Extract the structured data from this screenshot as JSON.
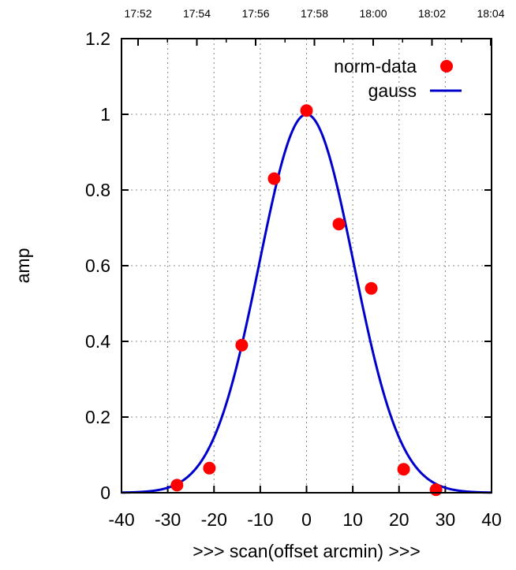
{
  "chart_data": {
    "type": "scatter",
    "title": "",
    "xlabel": ">>> scan(offset arcmin) >>>",
    "ylabel": "amp",
    "xlim": [
      -40,
      40
    ],
    "ylim": [
      0,
      1.2
    ],
    "x_ticks": [
      "-40",
      "-30",
      "-20",
      "-10",
      "0",
      "10",
      "20",
      "30",
      "40"
    ],
    "y_ticks": [
      "0",
      "0.2",
      "0.4",
      "0.6",
      "0.8",
      "1",
      "1.2"
    ],
    "top_axis_ticks": [
      "17:52",
      "17:54",
      "17:56",
      "17:58",
      "18:00",
      "18:02",
      "18:04"
    ],
    "grid": true,
    "legend_position": "top-right",
    "series": [
      {
        "name": "norm-data",
        "kind": "points",
        "color": "#ff0000",
        "x": [
          -28,
          -21,
          -14,
          -7,
          0,
          7,
          14,
          21,
          28
        ],
        "y": [
          0.02,
          0.065,
          0.39,
          0.83,
          1.01,
          0.71,
          0.54,
          0.062,
          0.008
        ]
      },
      {
        "name": "gauss",
        "kind": "curve",
        "color": "#0000cc",
        "amplitude": 1.0,
        "center": 0,
        "sigma": 10.2
      }
    ]
  }
}
